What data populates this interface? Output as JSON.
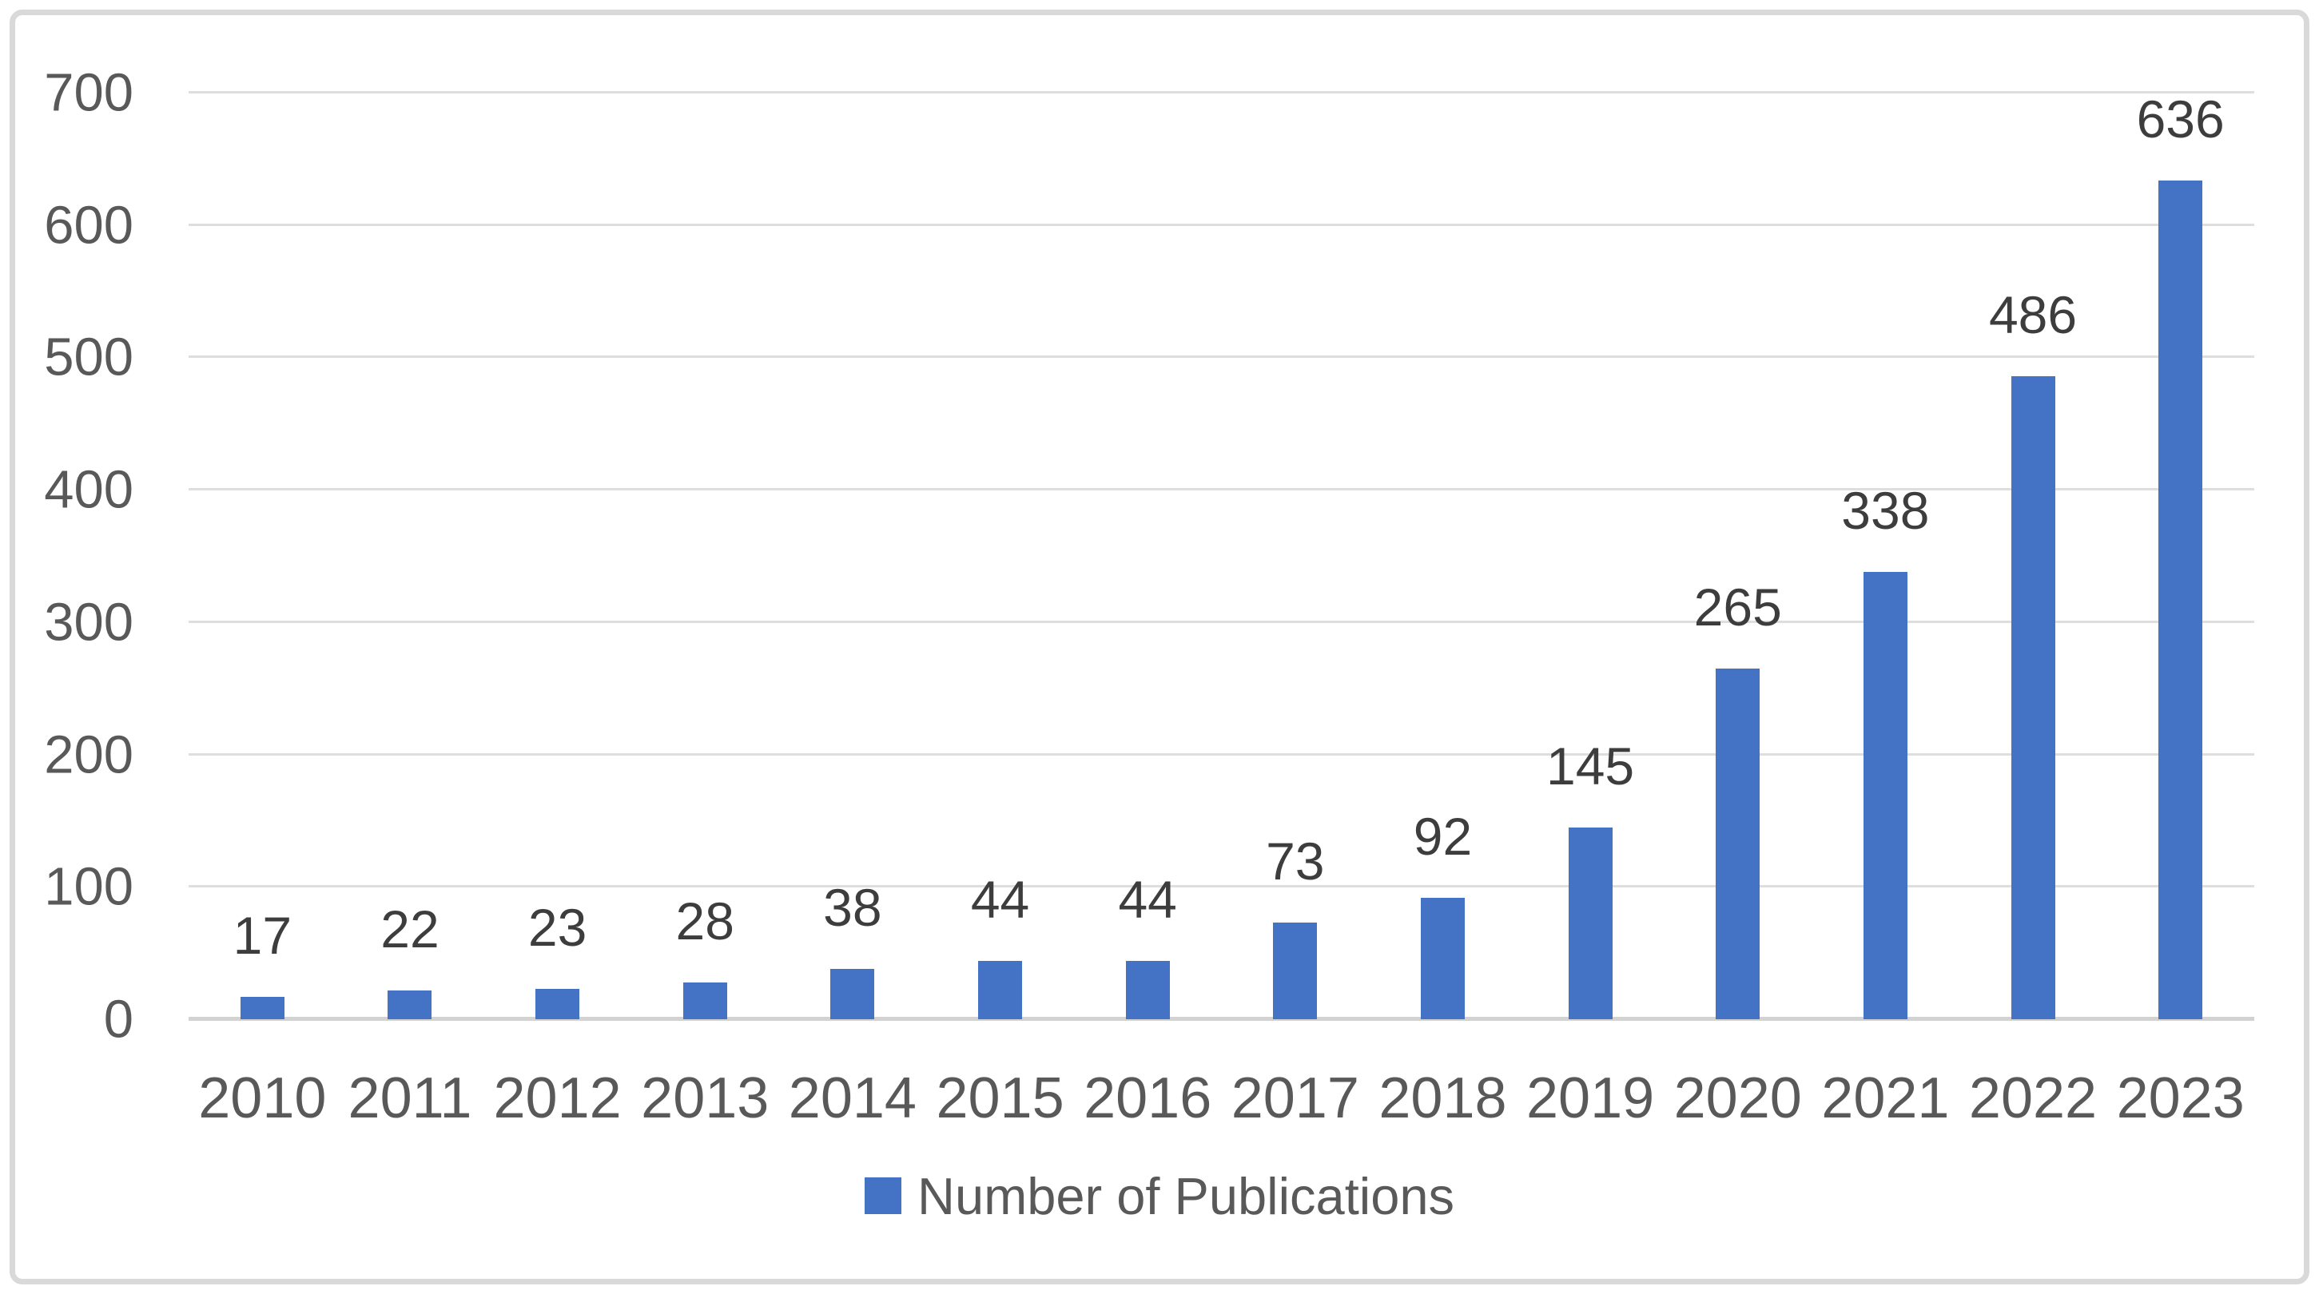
{
  "chart_data": {
    "type": "bar",
    "categories": [
      "2010",
      "2011",
      "2012",
      "2013",
      "2014",
      "2015",
      "2016",
      "2017",
      "2018",
      "2019",
      "2020",
      "2021",
      "2022",
      "2023"
    ],
    "series": [
      {
        "name": "Number of Publications",
        "values": [
          17,
          22,
          23,
          28,
          38,
          44,
          44,
          73,
          92,
          145,
          265,
          338,
          486,
          636
        ]
      }
    ],
    "title": "",
    "xlabel": "",
    "ylabel": "",
    "ylim": [
      0,
      700
    ],
    "yticks": [
      0,
      100,
      200,
      300,
      400,
      500,
      600,
      700
    ],
    "grid": true,
    "legend_position": "bottom",
    "data_labels": true
  },
  "colors": {
    "bar": "#4472C4",
    "data_label": "#3d3d3d",
    "axis_label": "#595959",
    "gridline": "#dedede",
    "baseline": "#d2d2d2",
    "frame_border": "#d9d9d9",
    "background": "#ffffff"
  },
  "legend": {
    "label": "Number of Publications"
  }
}
